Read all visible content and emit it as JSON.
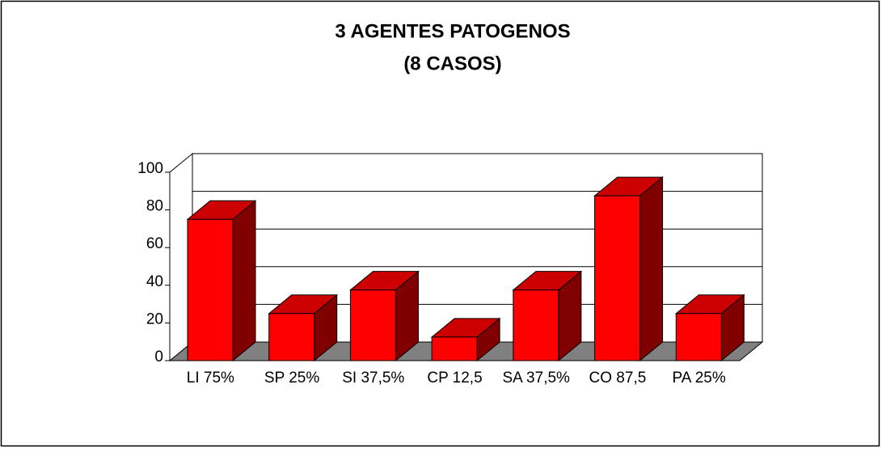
{
  "chart_data": {
    "type": "bar3d",
    "title": "3 AGENTES PATOGENOS",
    "subtitle": "(8 CASOS)",
    "categories": [
      "LI  75%",
      "SP 25%",
      "SI 37,5%",
      "CP 12,5",
      "SA 37,5%",
      "CO 87,5",
      "PA 25%"
    ],
    "values": [
      75,
      25,
      37.5,
      12.5,
      37.5,
      87.5,
      25
    ],
    "color": "#ff0000",
    "ylim": [
      0,
      100
    ],
    "yticks": [
      0,
      20,
      40,
      60,
      80,
      100
    ],
    "grid": true
  }
}
